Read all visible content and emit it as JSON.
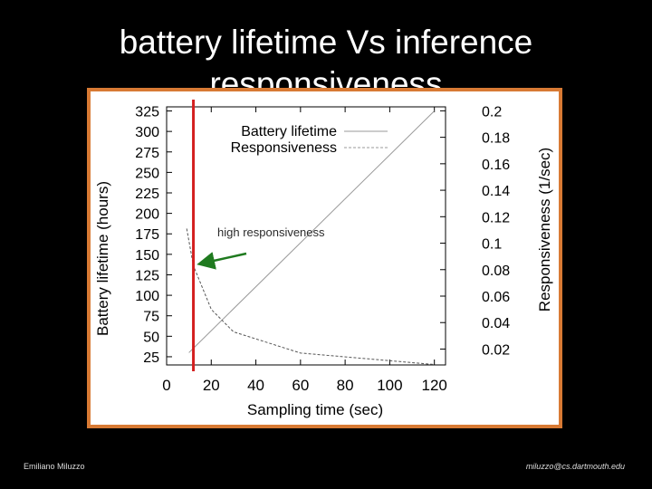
{
  "slide": {
    "title": "battery lifetime Vs inference responsiveness",
    "footer_left": "Emiliano Miluzzo",
    "footer_right": "miluzzo@cs.dartmouth.edu",
    "annotation": "high responsiveness"
  },
  "colors": {
    "frame": "#d87a34",
    "marker_line": "#d42020",
    "arrow": "#1f7a1f",
    "series_line": "#999999"
  },
  "chart_data": {
    "type": "line",
    "xlabel": "Sampling time (sec)",
    "ylabel": "Battery lifetime (hours)",
    "y2label": "Responsiveness (1/sec)",
    "xlim": [
      0,
      125
    ],
    "ylim": [
      15,
      330
    ],
    "y2lim": [
      0.008,
      0.203
    ],
    "x_ticks": [
      0,
      20,
      40,
      60,
      80,
      100,
      120
    ],
    "y_ticks": [
      25,
      50,
      75,
      100,
      125,
      150,
      175,
      200,
      225,
      250,
      275,
      300,
      325
    ],
    "y2_ticks": [
      "0.02",
      "0.04",
      "0.06",
      "0.08",
      "0.1",
      "0.12",
      "0.14",
      "0.16",
      "0.18",
      "0.2"
    ],
    "series": [
      {
        "name": "Battery lifetime",
        "axis": "left",
        "style": "solid",
        "x": [
          10,
          120
        ],
        "values": [
          30,
          325
        ]
      },
      {
        "name": "Responsiveness",
        "axis": "right",
        "style": "dashed",
        "x": [
          9,
          12,
          20,
          30,
          60,
          120
        ],
        "values": [
          0.111,
          0.083,
          0.05,
          0.033,
          0.017,
          0.0083
        ]
      }
    ],
    "marker_x": 12
  }
}
